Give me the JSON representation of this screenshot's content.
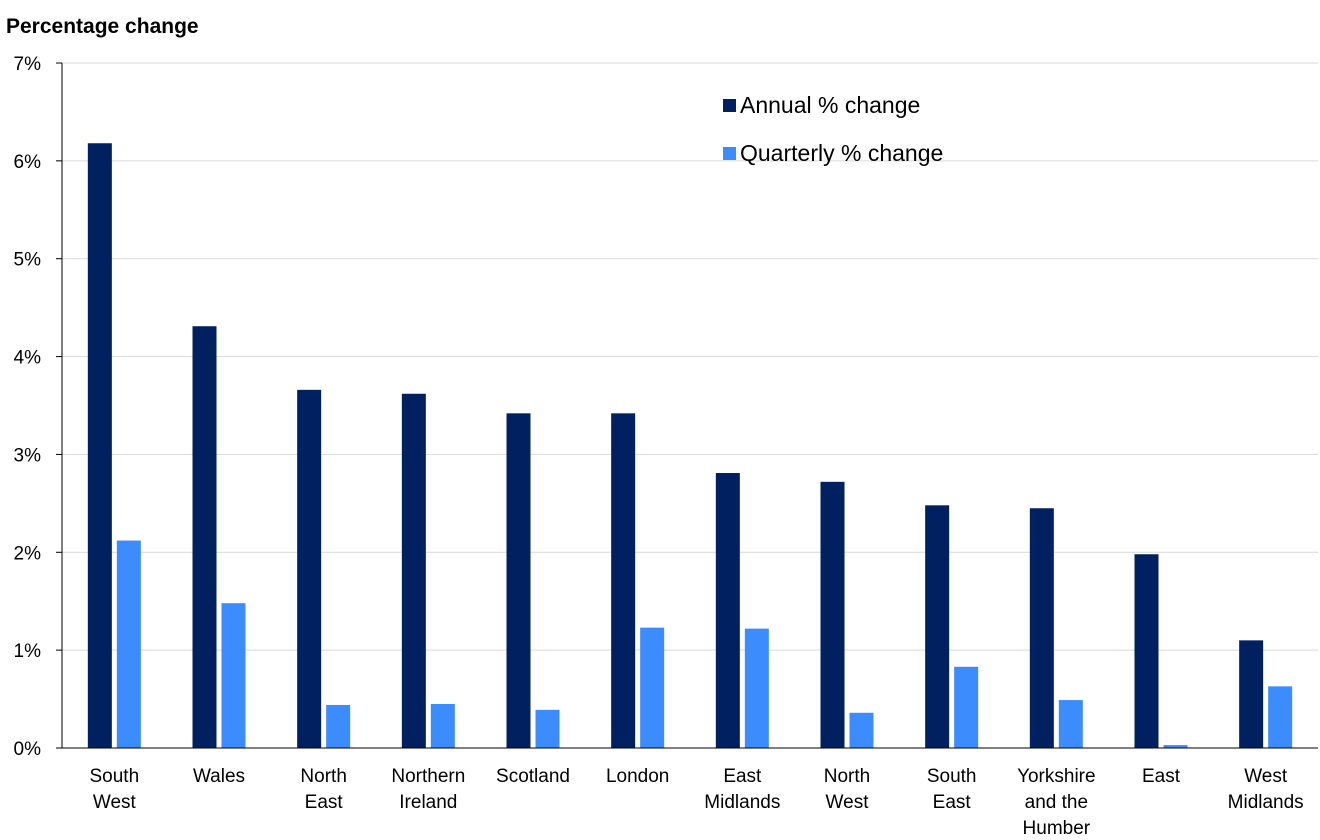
{
  "chart_data": {
    "type": "bar",
    "ylabel": "Percentage change",
    "ylim": [
      0,
      7
    ],
    "yticks": [
      0,
      1,
      2,
      3,
      4,
      5,
      6,
      7
    ],
    "ytick_labels": [
      "0%",
      "1%",
      "2%",
      "3%",
      "4%",
      "5%",
      "6%",
      "7%"
    ],
    "categories": [
      [
        "South",
        "West"
      ],
      [
        "Wales"
      ],
      [
        "North",
        "East"
      ],
      [
        "Northern",
        "Ireland"
      ],
      [
        "Scotland"
      ],
      [
        "London"
      ],
      [
        "East",
        "Midlands"
      ],
      [
        "North",
        "West"
      ],
      [
        "South",
        "East"
      ],
      [
        "Yorkshire",
        "and the",
        "Humber"
      ],
      [
        "East"
      ],
      [
        "West",
        "Midlands"
      ]
    ],
    "series": [
      {
        "name": "Annual % change",
        "color": "#002060",
        "values": [
          6.18,
          4.31,
          3.66,
          3.62,
          3.42,
          3.42,
          2.81,
          2.72,
          2.48,
          2.45,
          1.98,
          1.1
        ]
      },
      {
        "name": "Quarterly % change",
        "color": "#3d8cfe",
        "values": [
          2.12,
          1.48,
          0.44,
          0.45,
          0.39,
          1.23,
          1.22,
          0.36,
          0.83,
          0.49,
          0.03,
          0.63
        ]
      }
    ],
    "grid": true,
    "legend_position": "top-center"
  }
}
